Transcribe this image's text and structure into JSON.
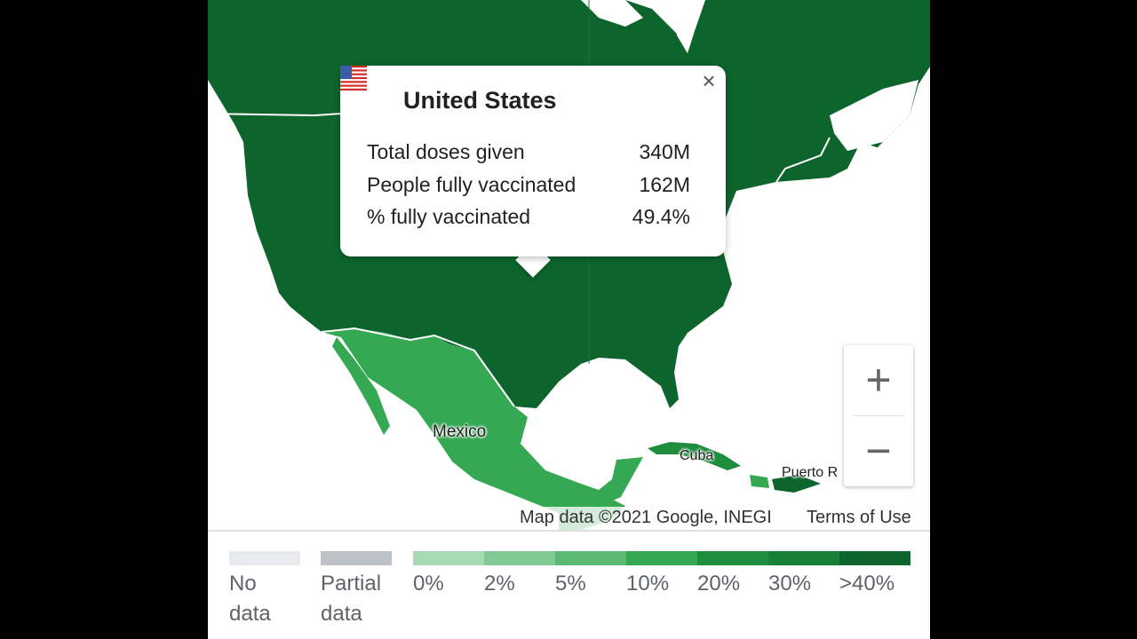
{
  "map": {
    "labels": {
      "mexico": "Mexico",
      "cuba": "Cuba",
      "puerto_rico": "Puerto R"
    },
    "colors": {
      "water": "#ffffff",
      "us_canada": "#0d652d",
      "mexico": "#34a853",
      "cuba": "#1e8e3e",
      "central_america": "#34a853"
    }
  },
  "popup": {
    "title": "United States",
    "close_icon": "close-icon",
    "flag_icon": "us-flag-icon",
    "rows": [
      {
        "label": "Total doses given",
        "value": "340M"
      },
      {
        "label": "People fully vaccinated",
        "value": "162M"
      },
      {
        "label": "% fully vaccinated",
        "value": "49.4%"
      }
    ]
  },
  "zoom": {
    "in_label": "+",
    "out_label": "−"
  },
  "attribution": {
    "text": "Map data ©2021 Google, INEGI",
    "terms": "Terms of Use"
  },
  "legend": {
    "no_data": {
      "line1": "No",
      "line2": "data",
      "color": "#e8eaed"
    },
    "partial_data": {
      "line1": "Partial",
      "line2": "data",
      "color": "#bdc1c6"
    },
    "scale": [
      {
        "label": "0%",
        "color": "#a8dab5"
      },
      {
        "label": "2%",
        "color": "#81c995"
      },
      {
        "label": "5%",
        "color": "#5bb974"
      },
      {
        "label": "10%",
        "color": "#34a853"
      },
      {
        "label": "20%",
        "color": "#1e8e3e"
      },
      {
        "label": "30%",
        "color": "#188038"
      },
      {
        "label": ">40%",
        "color": "#0d652d"
      }
    ]
  }
}
